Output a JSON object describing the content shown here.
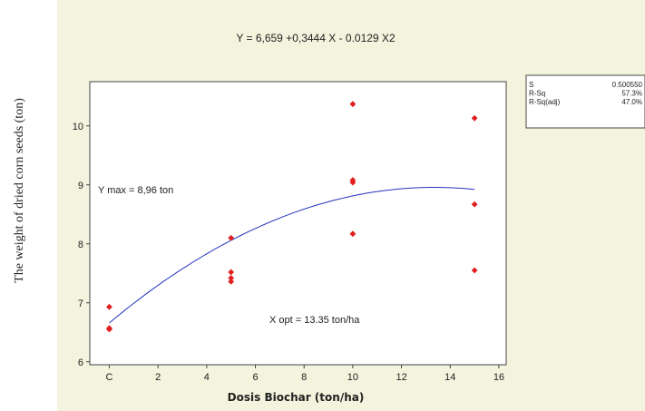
{
  "outer_ylabel": "The weight of dried corn seeds (ton)",
  "chart_data": {
    "type": "scatter",
    "title": "Y = 6,659 +0,3444 X - 0.0129 X2",
    "xlabel": "Dosis Biochar (ton/ha)",
    "ylabel": "",
    "xlim": [
      -0.8,
      16.3
    ],
    "ylim": [
      5.95,
      10.75
    ],
    "x_ticks": [
      0,
      2,
      4,
      6,
      8,
      10,
      12,
      14,
      16
    ],
    "x_tick_labels": [
      "C",
      "2",
      "4",
      "6",
      "8",
      "10",
      "12",
      "14",
      "16"
    ],
    "y_ticks": [
      6,
      7,
      8,
      9,
      10
    ],
    "y_tick_labels": [
      "6",
      "7",
      "8",
      "9",
      "10"
    ],
    "points": [
      {
        "x": 0,
        "y": 6.93
      },
      {
        "x": 0,
        "y": 6.57
      },
      {
        "x": 0,
        "y": 6.55
      },
      {
        "x": 5,
        "y": 8.1
      },
      {
        "x": 5,
        "y": 7.52
      },
      {
        "x": 5,
        "y": 7.42
      },
      {
        "x": 5,
        "y": 7.36
      },
      {
        "x": 10,
        "y": 10.37
      },
      {
        "x": 10,
        "y": 9.08
      },
      {
        "x": 10,
        "y": 9.04
      },
      {
        "x": 10,
        "y": 8.17
      },
      {
        "x": 15,
        "y": 10.13
      },
      {
        "x": 15,
        "y": 8.67
      },
      {
        "x": 15,
        "y": 7.55
      }
    ],
    "fit": {
      "a": 6.659,
      "b": 0.3444,
      "c": -0.0129,
      "x_range": [
        0,
        15
      ]
    },
    "annotations": {
      "ymax": "Y max = 8,96 ton",
      "xopt": "X opt = 13.35 ton/ha"
    },
    "stats": [
      {
        "label": "S",
        "value": "0.500550"
      },
      {
        "label": "R-Sq",
        "value": "57.3%"
      },
      {
        "label": "R-Sq(adj)",
        "value": "47.0%"
      }
    ],
    "colors": {
      "background": "#f3f3de",
      "plot_area": "#ffffff",
      "points": "#e02020",
      "fit_line": "#2233bb"
    },
    "grid": false
  }
}
